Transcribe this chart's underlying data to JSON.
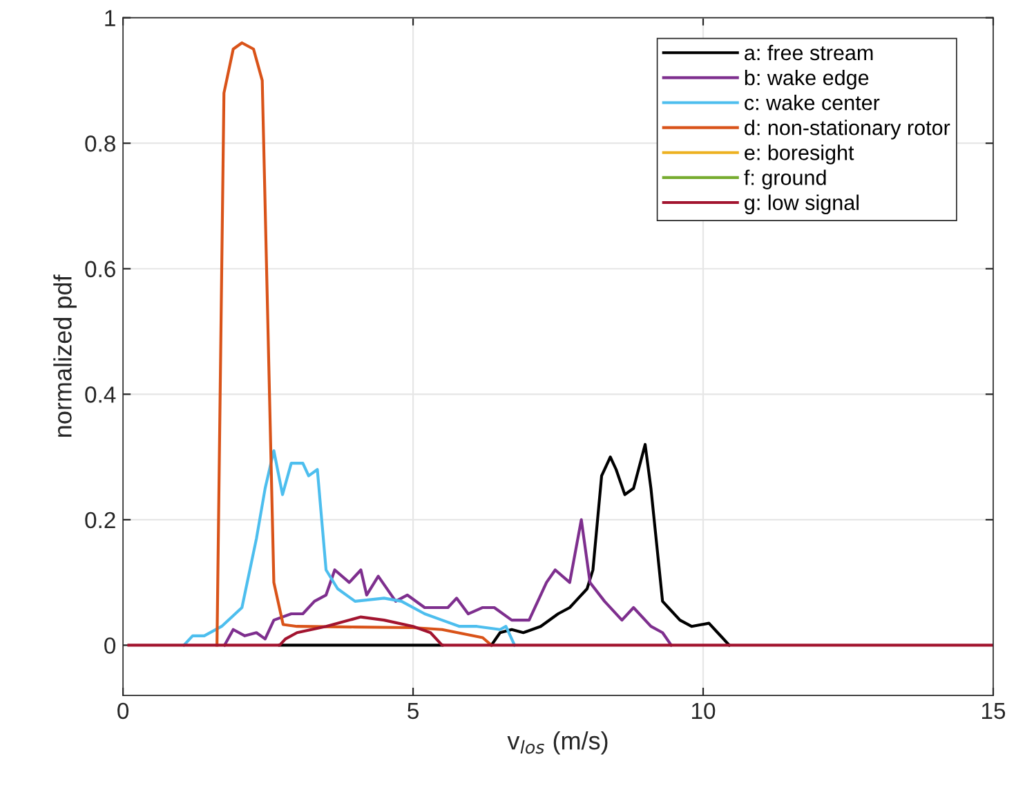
{
  "chart_data": {
    "type": "line",
    "xlabel": "v$_{los}$ (m/s)",
    "ylabel": "normalized pdf",
    "xlim": [
      0,
      15
    ],
    "ylim": [
      -0.08,
      1
    ],
    "xticks": [
      0,
      5,
      10,
      15
    ],
    "yticks": [
      0,
      0.2,
      0.4,
      0.6,
      0.8,
      1
    ],
    "grid": true,
    "legend": "top right",
    "line_style": "solid",
    "marker": "none",
    "series": [
      {
        "name": "a: free stream",
        "color": "#000000",
        "x": [
          2.7,
          5.5,
          5.52,
          6.35,
          6.5,
          6.7,
          6.9,
          7.2,
          7.5,
          7.7,
          7.8,
          8.0,
          8.1,
          8.25,
          8.4,
          8.5,
          8.65,
          8.8,
          9.0,
          9.1,
          9.3,
          9.4,
          9.6,
          9.8,
          10.1,
          10.25,
          10.45
        ],
        "values": [
          0,
          0,
          null,
          0,
          0.02,
          0.025,
          0.02,
          0.03,
          0.05,
          0.06,
          0.07,
          0.09,
          0.12,
          0.27,
          0.3,
          0.28,
          0.24,
          0.25,
          0.32,
          0.25,
          0.07,
          0.06,
          0.04,
          0.03,
          0.035,
          0.02,
          0
        ]
      },
      {
        "name": "b: wake edge",
        "color": "#7e2f8e",
        "x": [
          1.75,
          1.9,
          2.1,
          2.3,
          2.45,
          2.6,
          2.9,
          3.1,
          3.3,
          3.5,
          3.65,
          3.9,
          4.1,
          4.2,
          4.4,
          4.7,
          4.9,
          5.2,
          5.6,
          5.75,
          5.95,
          6.2,
          6.4,
          6.7,
          7.0,
          7.3,
          7.45,
          7.7,
          7.9,
          8.05,
          8.3,
          8.6,
          8.8,
          9.1,
          9.3,
          9.45
        ],
        "values": [
          0,
          0.025,
          0.015,
          0.02,
          0.01,
          0.04,
          0.05,
          0.05,
          0.07,
          0.08,
          0.12,
          0.1,
          0.12,
          0.08,
          0.11,
          0.07,
          0.08,
          0.06,
          0.06,
          0.075,
          0.05,
          0.06,
          0.06,
          0.04,
          0.04,
          0.1,
          0.12,
          0.1,
          0.2,
          0.1,
          0.07,
          0.04,
          0.06,
          0.03,
          0.02,
          0
        ]
      },
      {
        "name": "c: wake center",
        "color": "#4dbeee",
        "x": [
          1.05,
          1.2,
          1.4,
          1.7,
          2.05,
          2.3,
          2.45,
          2.6,
          2.75,
          2.9,
          3.1,
          3.2,
          3.35,
          3.5,
          3.7,
          4.0,
          4.5,
          4.8,
          5.2,
          5.5,
          5.8,
          6.1,
          6.5,
          6.6,
          6.75
        ],
        "values": [
          0,
          0.015,
          0.015,
          0.03,
          0.06,
          0.17,
          0.25,
          0.31,
          0.24,
          0.29,
          0.29,
          0.27,
          0.28,
          0.12,
          0.09,
          0.07,
          0.075,
          0.07,
          0.05,
          0.04,
          0.03,
          0.03,
          0.025,
          0.03,
          0
        ]
      },
      {
        "name": "d: non-stationary rotor",
        "color": "#d95319",
        "x": [
          1.62,
          1.74,
          1.9,
          2.05,
          2.25,
          2.4,
          2.6,
          2.76,
          3.0,
          4.0,
          5.0,
          5.5,
          6.2,
          6.35
        ],
        "values": [
          0,
          0.88,
          0.95,
          0.96,
          0.95,
          0.9,
          0.1,
          0.033,
          0.03,
          0.029,
          0.028,
          0.025,
          0.012,
          0
        ]
      },
      {
        "name": "e: boresight",
        "color": "#edb120"
      },
      {
        "name": "f: ground",
        "color": "#77ac30"
      },
      {
        "name": "g: low signal",
        "color": "#a2142f",
        "x": [
          0.1,
          2.7,
          2.8,
          3.0,
          3.5,
          4.1,
          4.5,
          5.0,
          5.3,
          5.5,
          15
        ],
        "values": [
          0,
          0,
          0.01,
          0.02,
          0.03,
          0.045,
          0.04,
          0.03,
          0.02,
          0,
          0
        ]
      }
    ]
  }
}
